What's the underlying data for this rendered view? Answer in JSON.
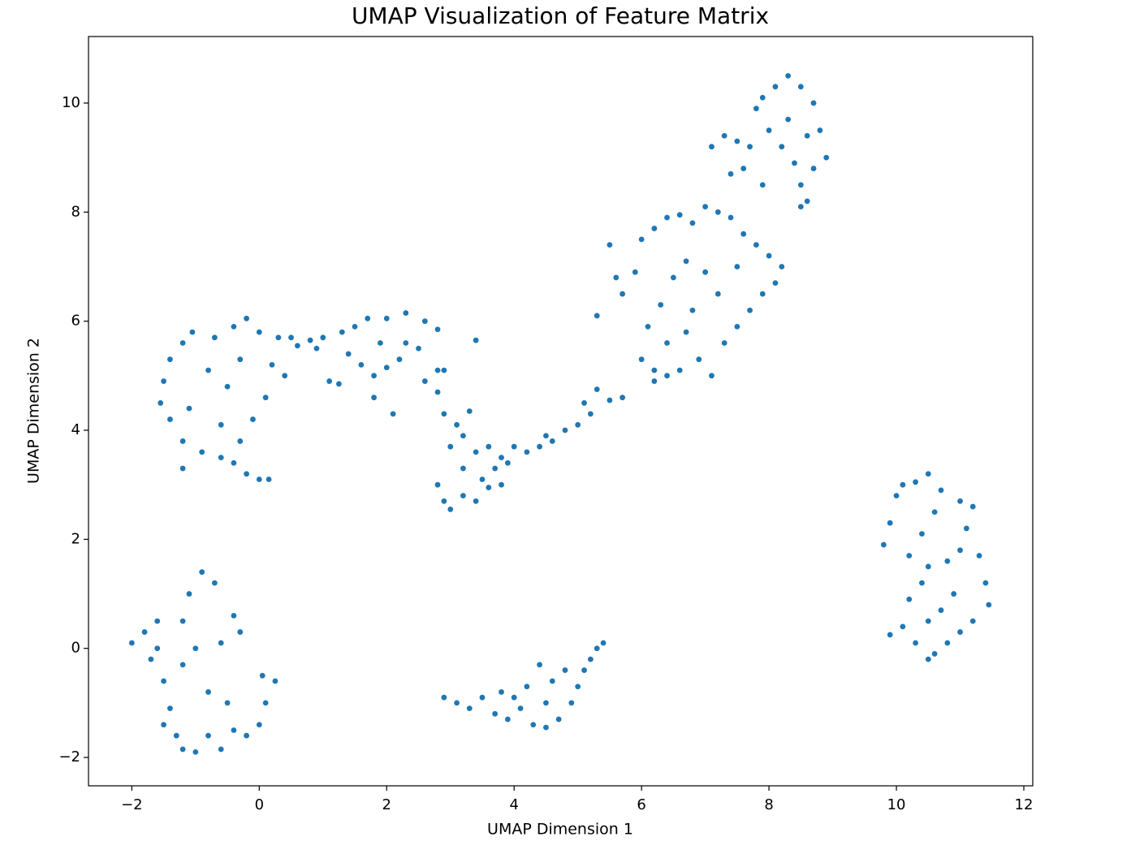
{
  "chart_data": {
    "type": "scatter",
    "title": "UMAP Visualization of Feature Matrix",
    "x_label": "UMAP Dimension 1",
    "y_label": "UMAP Dimension 2",
    "color": "#1f77b4",
    "xlim": [
      -2.68,
      12.14
    ],
    "ylim": [
      -2.52,
      11.22
    ],
    "xticks": [
      {
        "value": -2,
        "label": "−2"
      },
      0,
      2,
      4,
      6,
      8,
      10,
      12
    ],
    "yticks": [
      {
        "value": -2,
        "label": "−2"
      },
      0,
      2,
      4,
      6,
      8,
      10
    ],
    "x": [
      -2,
      -1.8,
      -1.6,
      -1.7,
      -1.5,
      -1.4,
      -1.3,
      -1.2,
      -1,
      -0.8,
      -0.6,
      -0.4,
      -0.2,
      0,
      0.1,
      0.25,
      0.05,
      -0.3,
      -0.4,
      -0.7,
      -0.9,
      -1.1,
      -1.2,
      -1,
      -1.2,
      -0.8,
      -0.5,
      -1.5,
      -1.6,
      -0.6,
      -1.55,
      -1.5,
      -1.4,
      -1.2,
      -1.05,
      -0.7,
      -0.4,
      -0.2,
      0,
      0.2,
      0.4,
      0.1,
      -0.1,
      -0.3,
      -0.4,
      -0.2,
      0,
      0.15,
      -0.6,
      -0.9,
      -1.2,
      -1.4,
      -1.1,
      -0.8,
      -0.5,
      -0.3,
      -1.2,
      -0.6,
      0.5,
      0.6,
      0.8,
      1,
      0.9,
      1.1,
      1.25,
      0.3,
      1.3,
      1.5,
      1.7,
      2,
      2.3,
      2.6,
      2.8,
      1.4,
      1.6,
      1.8,
      2,
      2.2,
      2.5,
      2.8,
      2.1,
      1.8,
      2.6,
      1.9,
      2.3,
      2.9,
      3.1,
      3.3,
      3,
      3.2,
      3.4,
      3.6,
      3.8,
      4,
      4.2,
      3.5,
      3.7,
      3.9,
      2.8,
      2.9,
      3,
      3.2,
      3.4,
      3.6,
      3.8,
      3.4,
      3.2,
      2.8,
      2.9,
      4.4,
      4.6,
      4.8,
      5,
      5.2,
      5.1,
      5.3,
      5.5,
      5.7,
      4.5,
      5.5,
      5.6,
      5.7,
      5.9,
      6,
      6.2,
      6.4,
      6.6,
      6.8,
      7,
      7.2,
      7.4,
      7.6,
      7.8,
      8,
      8.2,
      8.1,
      7.9,
      7.7,
      7.5,
      7.3,
      7.1,
      6.9,
      6.6,
      6.4,
      6.2,
      6,
      6.1,
      6.3,
      6.5,
      6.7,
      7,
      7.2,
      6.8,
      6.4,
      6.7,
      7.5,
      5.3,
      6.2,
      7.1,
      7.3,
      7.5,
      7.6,
      7.8,
      7.9,
      8.1,
      8.3,
      8.5,
      8.7,
      8.8,
      8.9,
      8.7,
      8.5,
      8.6,
      8.5,
      8.2,
      8.3,
      8,
      7.7,
      8.4,
      8.6,
      7.9,
      7.4,
      2.9,
      3.1,
      3.3,
      3.5,
      3.7,
      3.9,
      4.1,
      4.3,
      4.5,
      4.7,
      4.9,
      5,
      5.1,
      5.2,
      5.3,
      5.4,
      4.8,
      4.6,
      4.4,
      4.2,
      4,
      3.8,
      4.5,
      9.8,
      9.9,
      10,
      10.1,
      10.3,
      10.5,
      10.7,
      10.6,
      10.4,
      10.2,
      10.5,
      10.8,
      11,
      11.1,
      11.2,
      11,
      11.3,
      11.4,
      11.45,
      11.2,
      11,
      10.8,
      10.6,
      10.5,
      10.3,
      10.1,
      9.9,
      10.2,
      10.4,
      10.7,
      10.9,
      10.5
    ],
    "y": [
      0.1,
      0.3,
      0.5,
      -0.2,
      -0.6,
      -1.1,
      -1.6,
      -1.85,
      -1.9,
      -1.6,
      -1.85,
      -1.5,
      -1.6,
      -1.4,
      -1,
      -0.6,
      -0.5,
      0.3,
      0.6,
      1.2,
      1.4,
      1,
      0.5,
      0,
      -0.3,
      -0.8,
      -1,
      -1.4,
      0,
      0.1,
      4.5,
      4.9,
      5.3,
      5.6,
      5.8,
      5.7,
      5.9,
      6.05,
      5.8,
      5.2,
      5,
      4.6,
      4.2,
      3.8,
      3.4,
      3.2,
      3.1,
      3.1,
      3.5,
      3.6,
      3.8,
      4.2,
      4.4,
      5.1,
      4.8,
      5.3,
      3.3,
      4.1,
      5.7,
      5.55,
      5.65,
      5.7,
      5.5,
      4.9,
      4.85,
      5.7,
      5.8,
      5.9,
      6.05,
      6.05,
      6.15,
      6,
      5.85,
      5.4,
      5.2,
      5,
      5.15,
      5.3,
      5.5,
      5.1,
      4.3,
      4.6,
      4.9,
      5.6,
      5.6,
      4.3,
      4.1,
      4.35,
      3.7,
      3.3,
      3.6,
      3.7,
      3.5,
      3.7,
      3.6,
      3.1,
      3.3,
      3.4,
      3,
      2.7,
      2.55,
      2.8,
      2.7,
      2.95,
      3,
      5.65,
      3.9,
      4.7,
      5.1,
      3.7,
      3.8,
      4,
      4.1,
      4.3,
      4.5,
      4.75,
      4.55,
      4.6,
      3.9,
      7.4,
      6.8,
      6.5,
      6.9,
      7.5,
      7.7,
      7.9,
      7.95,
      7.8,
      8.1,
      8,
      7.9,
      7.6,
      7.4,
      7.2,
      7,
      6.7,
      6.5,
      6.2,
      5.9,
      5.6,
      5,
      5.3,
      5.1,
      5,
      5.1,
      5.3,
      5.9,
      6.3,
      6.8,
      7.1,
      6.9,
      6.5,
      6.2,
      5.6,
      5.8,
      7,
      6.1,
      4.9,
      9.2,
      9.4,
      9.3,
      8.8,
      9.9,
      10.1,
      10.3,
      10.5,
      10.3,
      10,
      9.5,
      9,
      8.8,
      8.5,
      8.2,
      8.1,
      9.2,
      9.7,
      9.5,
      9.2,
      8.9,
      9.4,
      8.5,
      8.7,
      -0.9,
      -1,
      -1.1,
      -0.9,
      -1.2,
      -1.3,
      -1.1,
      -1.4,
      -1.45,
      -1.3,
      -1,
      -0.7,
      -0.4,
      -0.2,
      0,
      0.1,
      -0.4,
      -0.6,
      -0.3,
      -0.7,
      -0.9,
      -0.8,
      -1,
      1.9,
      2.3,
      2.8,
      3,
      3.05,
      3.2,
      2.9,
      2.5,
      2.1,
      1.7,
      1.5,
      1.6,
      1.8,
      2.2,
      2.6,
      2.7,
      1.7,
      1.2,
      0.8,
      0.5,
      0.3,
      0.1,
      -0.1,
      -0.2,
      0.1,
      0.4,
      0.25,
      0.9,
      1.2,
      0.7,
      1,
      0.5
    ]
  }
}
